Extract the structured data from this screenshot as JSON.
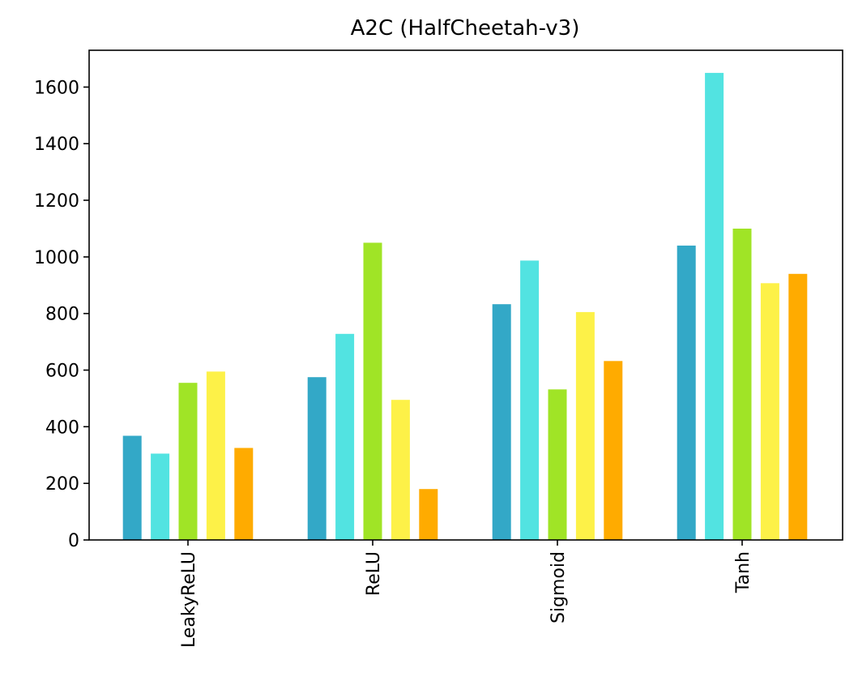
{
  "chart_data": {
    "type": "bar",
    "title": "A2C (HalfCheetah-v3)",
    "xlabel": "",
    "ylabel": "",
    "categories": [
      "LeakyReLU",
      "ReLU",
      "Sigmoid",
      "Tanh"
    ],
    "ylim": [
      0,
      1730
    ],
    "yticks": [
      0,
      200,
      400,
      600,
      800,
      1000,
      1200,
      1400,
      1600
    ],
    "grid": false,
    "legend": "none",
    "x_tick_rotation": 90,
    "series": [
      {
        "values": [
          368,
          575,
          833,
          1040
        ],
        "color": "#33a8c7"
      },
      {
        "values": [
          305,
          728,
          987,
          1650
        ],
        "color": "#52e3e1"
      },
      {
        "values": [
          555,
          1050,
          532,
          1100
        ],
        "color": "#a0e426"
      },
      {
        "values": [
          595,
          495,
          805,
          907
        ],
        "color": "#fdf148"
      },
      {
        "values": [
          325,
          180,
          632,
          940
        ],
        "color": "#ffab00"
      }
    ]
  }
}
